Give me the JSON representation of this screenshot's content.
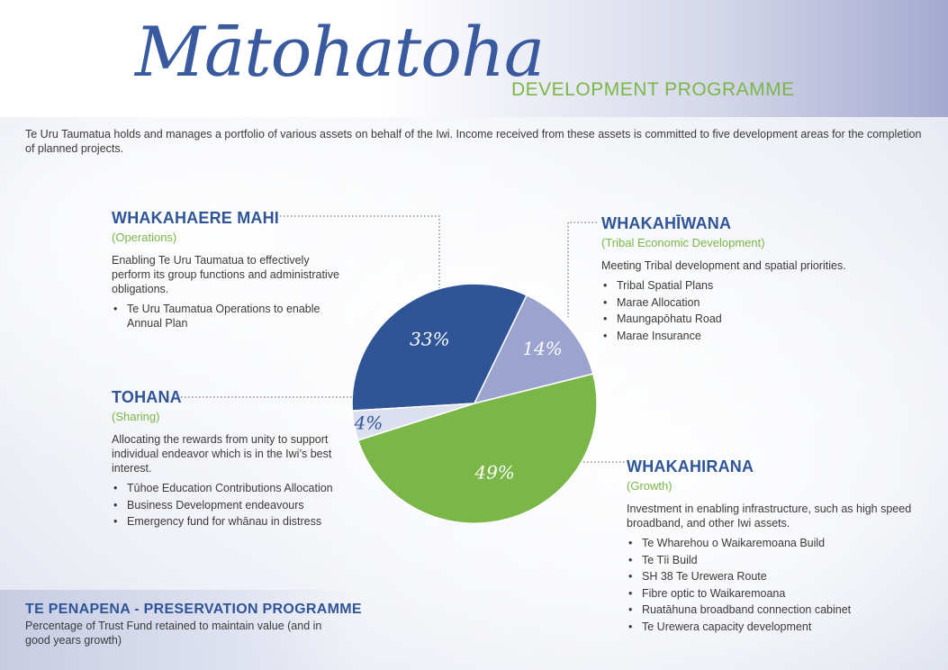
{
  "header": {
    "title": "Mātohatoha",
    "subtitle": "DEVELOPMENT PROGRAMME"
  },
  "intro": "Te Uru Taumatua holds and manages a portfolio of various assets on behalf of the Iwi. Income received from these assets is committed to five development areas for the completion of planned projects.",
  "sections": {
    "operations": {
      "title": "WHAKAHAERE MAHI",
      "subtitle": "(Operations)",
      "description": "Enabling Te Uru Taumatua to effectively perform its group functions and administrative obligations.",
      "items": [
        "Te Uru Taumatua Operations to enable Annual Plan"
      ]
    },
    "sharing": {
      "title": "TOHANA",
      "subtitle": "(Sharing)",
      "description": "Allocating the rewards from unity to support individual endeavor which is in the Iwi’s best interest.",
      "items": [
        "Tūhoe Education Contributions Allocation",
        "Business Development endeavours",
        "Emergency fund for whānau in distress"
      ]
    },
    "economic": {
      "title": "WHAKAHĪWANA",
      "subtitle": "(Tribal Economic Development)",
      "description": "Meeting Tribal development and spatial priorities.",
      "items": [
        "Tribal Spatial Plans",
        "Marae Allocation",
        "Maungapōhatu Road",
        "Marae Insurance"
      ]
    },
    "growth": {
      "title": "WHAKAHIRANA",
      "subtitle": "(Growth)",
      "description": "Investment in enabling infrastructure, such as high speed broadband, and other Iwi assets.",
      "items": [
        "Te Wharehou o Waikaremoana Build",
        "Te Tīi Build",
        "SH 38 Te Urewera Route",
        "Fibre optic to Waikaremoana",
        "Ruatāhuna broadband connection cabinet",
        "Te Urewera capacity development"
      ]
    }
  },
  "footer": {
    "title": "TE PENAPENA - PRESERVATION PROGRAMME",
    "description": "Percentage of Trust Fund retained to maintain value (and in good years growth)"
  },
  "chart_data": {
    "type": "pie",
    "slices": [
      {
        "key": "operations",
        "value": 33,
        "label": "33%",
        "color": "#2f5597"
      },
      {
        "key": "economic",
        "value": 14,
        "label": "14%",
        "color": "#9ba3cf"
      },
      {
        "key": "growth",
        "value": 49,
        "label": "49%",
        "color": "#7ab648"
      },
      {
        "key": "sharing",
        "value": 4,
        "label": "4%",
        "color": "#dcdff0"
      }
    ]
  },
  "colors": {
    "accent_blue": "#2f5597",
    "accent_green": "#7ab648"
  }
}
